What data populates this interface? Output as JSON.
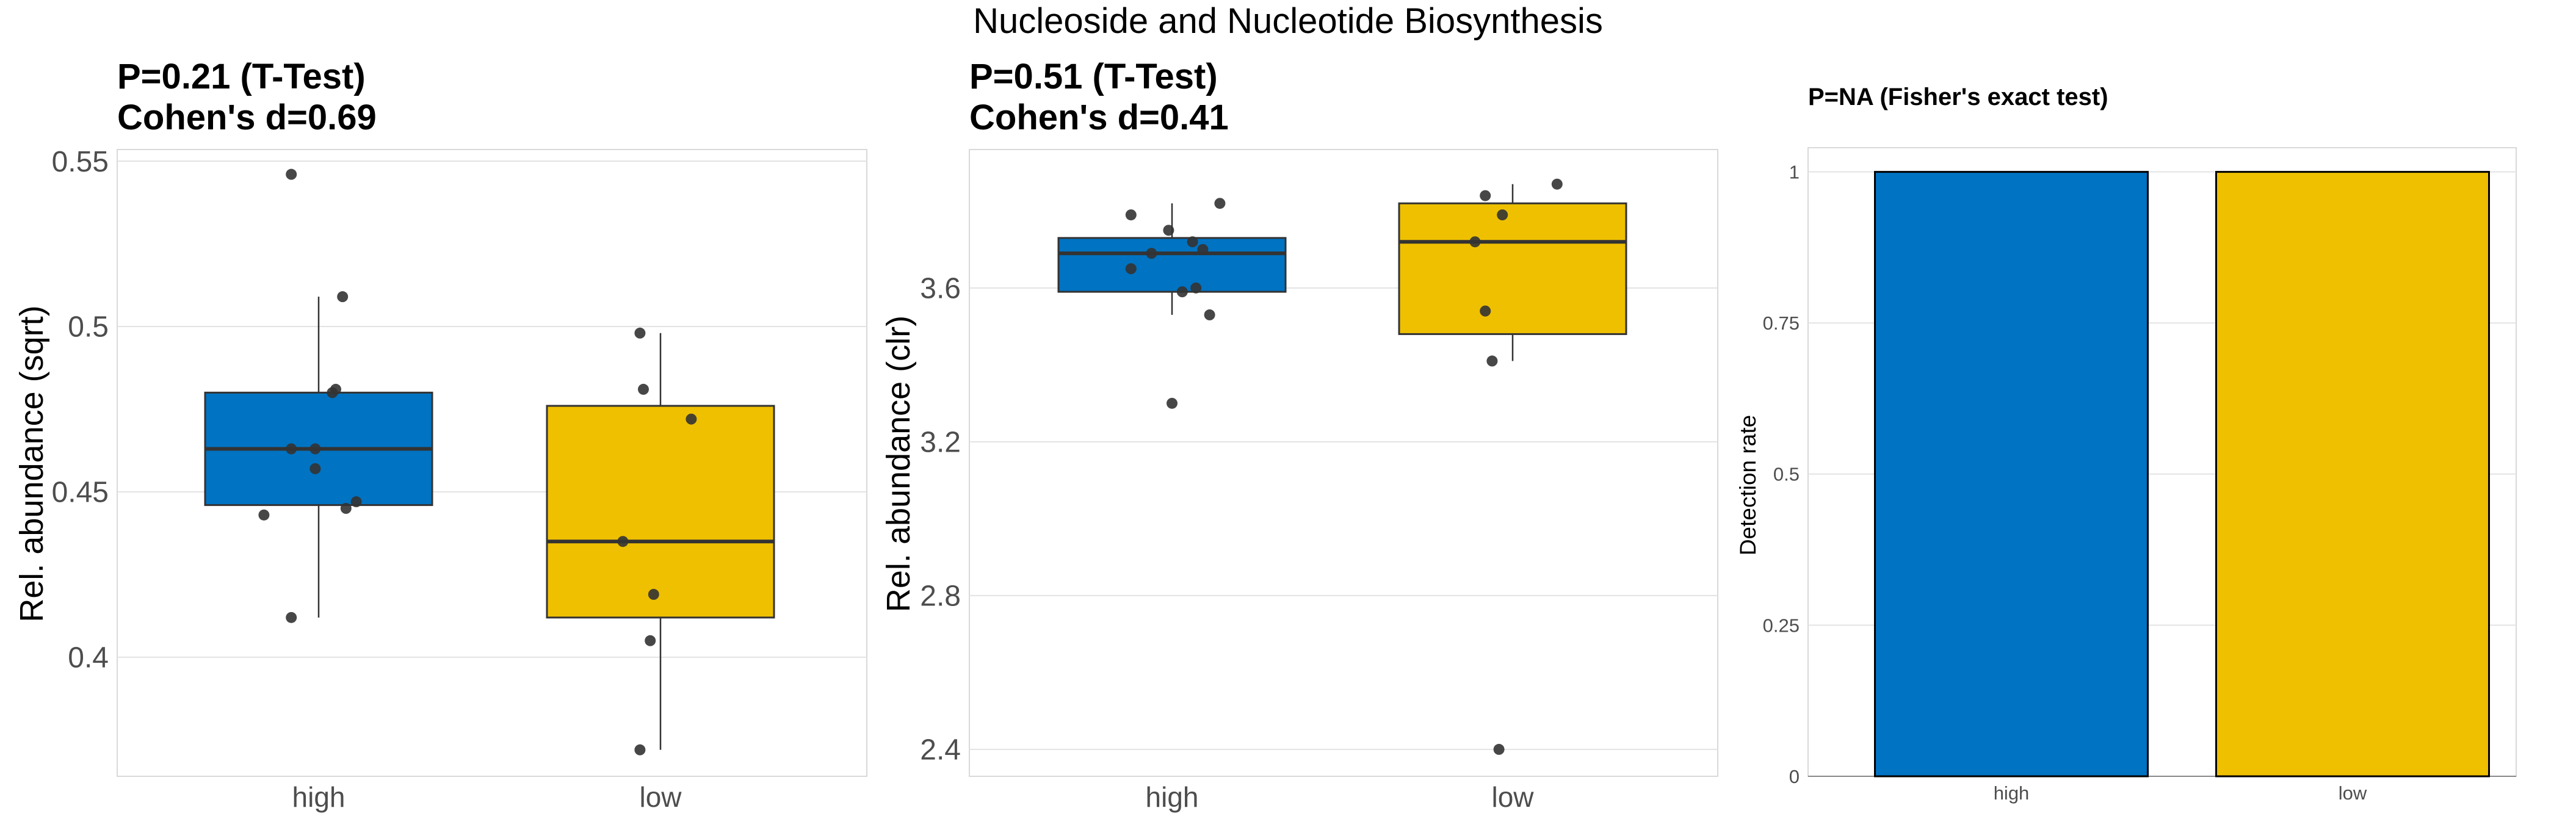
{
  "figure": {
    "title": "Nucleoside and Nucleotide Biosynthesis"
  },
  "colors": {
    "high": "#0073C2",
    "low": "#EFC000",
    "panel_border": "#d9d9d9",
    "grid": "#e3e3e3",
    "point": "#333333",
    "text": "#000000",
    "tick_text": "#4d4d4d"
  },
  "chart_data": [
    {
      "type": "box",
      "title_line1": "P=0.21 (T-Test)",
      "title_line2": "Cohen's d=0.69",
      "ylabel": "Rel. abundance (sqrt)",
      "xlabel": "",
      "categories": [
        "high",
        "low"
      ],
      "ylim": [
        0.364,
        0.5535
      ],
      "yticks": [
        0.4,
        0.45,
        0.5,
        0.55
      ],
      "ytick_labels": [
        "0.4",
        "0.45",
        "0.5",
        "0.55"
      ],
      "grid": true,
      "boxes": [
        {
          "group": "high",
          "whisker_low": 0.412,
          "q1": 0.446,
          "median": 0.463,
          "q3": 0.48,
          "whisker_high": 0.509
        },
        {
          "group": "low",
          "whisker_low": 0.372,
          "q1": 0.412,
          "median": 0.435,
          "q3": 0.476,
          "whisker_high": 0.498
        }
      ],
      "points": [
        {
          "group": "high",
          "jitter": -0.08,
          "y": 0.546
        },
        {
          "group": "high",
          "jitter": 0.07,
          "y": 0.509
        },
        {
          "group": "high",
          "jitter": 0.05,
          "y": 0.481
        },
        {
          "group": "high",
          "jitter": 0.04,
          "y": 0.48
        },
        {
          "group": "high",
          "jitter": -0.08,
          "y": 0.463
        },
        {
          "group": "high",
          "jitter": -0.01,
          "y": 0.463
        },
        {
          "group": "high",
          "jitter": -0.01,
          "y": 0.457
        },
        {
          "group": "high",
          "jitter": 0.11,
          "y": 0.447
        },
        {
          "group": "high",
          "jitter": 0.08,
          "y": 0.445
        },
        {
          "group": "high",
          "jitter": -0.16,
          "y": 0.443
        },
        {
          "group": "high",
          "jitter": -0.08,
          "y": 0.412
        },
        {
          "group": "low",
          "jitter": -0.06,
          "y": 0.498
        },
        {
          "group": "low",
          "jitter": -0.05,
          "y": 0.481
        },
        {
          "group": "low",
          "jitter": 0.09,
          "y": 0.472
        },
        {
          "group": "low",
          "jitter": -0.11,
          "y": 0.435
        },
        {
          "group": "low",
          "jitter": -0.02,
          "y": 0.419
        },
        {
          "group": "low",
          "jitter": -0.03,
          "y": 0.405
        },
        {
          "group": "low",
          "jitter": -0.06,
          "y": 0.372
        }
      ]
    },
    {
      "type": "box",
      "title_line1": "P=0.51 (T-Test)",
      "title_line2": "Cohen's d=0.41",
      "ylabel": "Rel. abundance (clr)",
      "xlabel": "",
      "categories": [
        "high",
        "low"
      ],
      "ylim": [
        2.33,
        3.96
      ],
      "yticks": [
        2.4,
        2.8,
        3.2,
        3.6
      ],
      "ytick_labels": [
        "2.4",
        "2.8",
        "3.2",
        "3.6"
      ],
      "grid": true,
      "boxes": [
        {
          "group": "high",
          "whisker_low": 3.53,
          "q1": 3.59,
          "median": 3.69,
          "q3": 3.73,
          "whisker_high": 3.82
        },
        {
          "group": "low",
          "whisker_low": 3.41,
          "q1": 3.48,
          "median": 3.72,
          "q3": 3.82,
          "whisker_high": 3.87
        }
      ],
      "points": [
        {
          "group": "high",
          "jitter": -0.12,
          "y": 3.79
        },
        {
          "group": "high",
          "jitter": 0.14,
          "y": 3.82
        },
        {
          "group": "high",
          "jitter": -0.01,
          "y": 3.75
        },
        {
          "group": "high",
          "jitter": 0.06,
          "y": 3.72
        },
        {
          "group": "high",
          "jitter": 0.09,
          "y": 3.7
        },
        {
          "group": "high",
          "jitter": -0.06,
          "y": 3.69
        },
        {
          "group": "high",
          "jitter": -0.12,
          "y": 3.65
        },
        {
          "group": "high",
          "jitter": 0.07,
          "y": 3.6
        },
        {
          "group": "high",
          "jitter": 0.03,
          "y": 3.59
        },
        {
          "group": "high",
          "jitter": 0.11,
          "y": 3.53
        },
        {
          "group": "high",
          "jitter": 0.0,
          "y": 3.3
        },
        {
          "group": "low",
          "jitter": 0.13,
          "y": 3.87
        },
        {
          "group": "low",
          "jitter": -0.08,
          "y": 3.84
        },
        {
          "group": "low",
          "jitter": -0.03,
          "y": 3.79
        },
        {
          "group": "low",
          "jitter": -0.11,
          "y": 3.72
        },
        {
          "group": "low",
          "jitter": -0.08,
          "y": 3.54
        },
        {
          "group": "low",
          "jitter": -0.06,
          "y": 3.41
        },
        {
          "group": "low",
          "jitter": -0.04,
          "y": 2.4
        }
      ]
    },
    {
      "type": "bar",
      "title": "P=NA (Fisher's exact test)",
      "ylabel": "Detection rate",
      "xlabel": "",
      "categories": [
        "high",
        "low"
      ],
      "values": [
        1,
        1
      ],
      "ylim": [
        0,
        1.04
      ],
      "yticks": [
        0,
        0.25,
        0.5,
        0.75,
        1
      ],
      "ytick_labels": [
        "0",
        "0.25",
        "0.5",
        "0.75",
        "1"
      ],
      "grid": true
    }
  ]
}
